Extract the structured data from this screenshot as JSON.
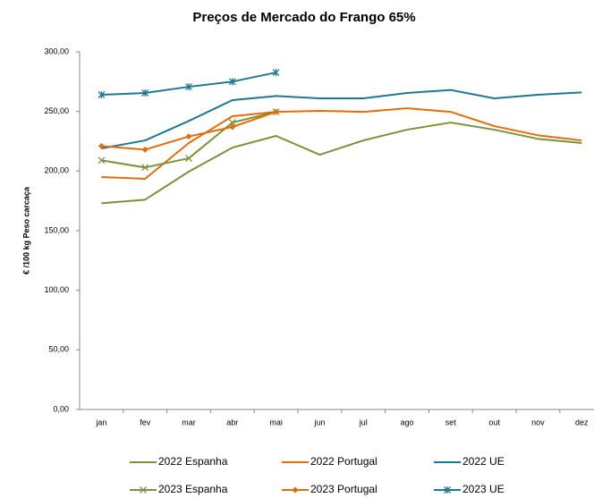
{
  "chart_data": {
    "type": "line",
    "title": "Preços de Mercado do Frango 65%",
    "y_label": "€ /100 kg Peso carcaça",
    "categories": [
      "jan",
      "fev",
      "mar",
      "abr",
      "mai",
      "jun",
      "jul",
      "ago",
      "set",
      "out",
      "nov",
      "dez"
    ],
    "ylim": [
      0,
      300
    ],
    "yticks": [
      {
        "value": 0,
        "label": "0,00"
      },
      {
        "value": 50,
        "label": "50,00"
      },
      {
        "value": 100,
        "label": "100,00"
      },
      {
        "value": 150,
        "label": "150,00"
      },
      {
        "value": 200,
        "label": "200,00"
      },
      {
        "value": 250,
        "label": "250,00"
      },
      {
        "value": 300,
        "label": "300,00"
      }
    ],
    "grid": false,
    "legend": "bottom",
    "series": [
      {
        "name": "2022 Espanha",
        "color": "#77933c",
        "marker": "none",
        "values": [
          173,
          176,
          199.5,
          219.7,
          229.5,
          213.7,
          225.7,
          234.7,
          240.7,
          234.7,
          227,
          223.5
        ]
      },
      {
        "name": "2022 Portugal",
        "color": "#e46c0a",
        "marker": "none",
        "values": [
          195,
          193.5,
          223.5,
          246,
          249.7,
          250.5,
          249.7,
          252.7,
          249.7,
          237.7,
          230,
          225.7
        ]
      },
      {
        "name": "2022 UE",
        "color": "#1f7891",
        "marker": "none",
        "values": [
          219,
          225.7,
          242,
          259.5,
          263,
          261,
          261,
          265.5,
          268,
          261,
          264,
          266
        ]
      },
      {
        "name": "2023 Espanha",
        "color": "#77933c",
        "marker": "x",
        "values": [
          209,
          203,
          210.7,
          240.7,
          249.7,
          null,
          null,
          null,
          null,
          null,
          null,
          null
        ]
      },
      {
        "name": "2023 Portugal",
        "color": "#e46c0a",
        "marker": "diamond",
        "values": [
          221,
          218,
          229,
          237,
          249.7,
          null,
          null,
          null,
          null,
          null,
          null,
          null
        ]
      },
      {
        "name": "2023 UE",
        "color": "#1f7891",
        "marker": "star",
        "values": [
          264,
          265.5,
          270.7,
          275,
          282.7,
          null,
          null,
          null,
          null,
          null,
          null,
          null
        ]
      }
    ]
  }
}
